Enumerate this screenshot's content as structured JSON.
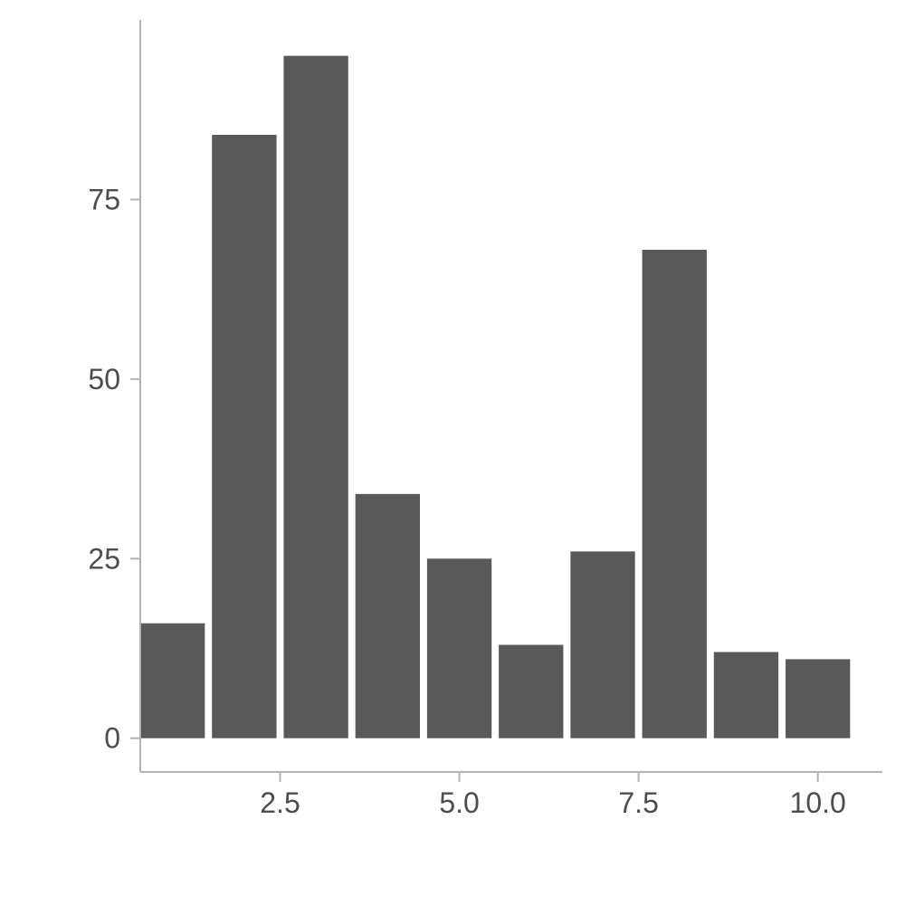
{
  "chart_data": {
    "type": "bar",
    "title": "",
    "xlabel": "",
    "ylabel": "",
    "x": [
      1,
      2,
      3,
      4,
      5,
      6,
      7,
      8,
      9,
      10
    ],
    "values": [
      16,
      84,
      95,
      34,
      25,
      13,
      26,
      68,
      12,
      11
    ],
    "bar_width": 0.9,
    "xlim": [
      0.55,
      10.9
    ],
    "ylim": [
      -4.7,
      100
    ],
    "x_ticks": [
      2.5,
      5.0,
      7.5,
      10.0
    ],
    "x_tick_labels": [
      "2.5",
      "5.0",
      "7.5",
      "10.0"
    ],
    "y_ticks": [
      0,
      25,
      50,
      75
    ],
    "y_tick_labels": [
      "0",
      "25",
      "50",
      "75"
    ],
    "bar_color": "#595959",
    "axis_color": "#b3b3b3",
    "text_color": "#4d4d4d",
    "grid": false,
    "legend": "none"
  }
}
